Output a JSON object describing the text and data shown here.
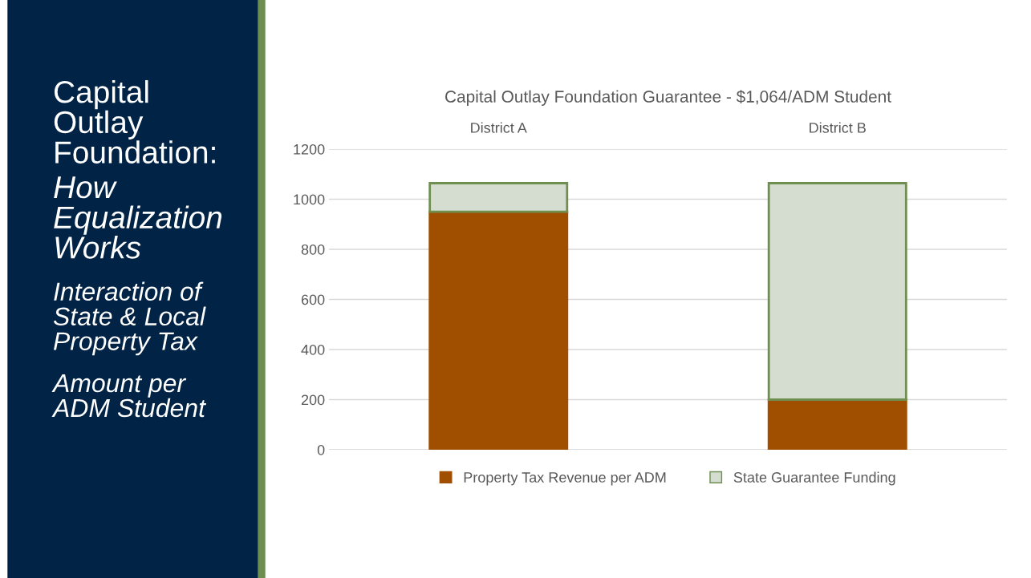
{
  "chart_data": {
    "type": "bar",
    "stacked": true,
    "title": "Capital Outlay Foundation Guarantee - $1,064/ADM Student",
    "categories": [
      "District A",
      "District B"
    ],
    "series": [
      {
        "name": "Property Tax Revenue per ADM",
        "color": "#a04f00",
        "values": [
          950,
          200
        ]
      },
      {
        "name": "State Guarantee Funding",
        "color": "#d5ddd0",
        "values": [
          114,
          864
        ]
      }
    ],
    "ylim": [
      0,
      1200
    ],
    "yticks": [
      0,
      200,
      400,
      600,
      800,
      1000,
      1200
    ],
    "grid": "y",
    "legend": "bottom",
    "annotations": [
      "Capital Outlay Foundation:",
      "How Equalization Works",
      "Interaction of State & Local Property Tax",
      "Amount per ADM Student"
    ]
  }
}
